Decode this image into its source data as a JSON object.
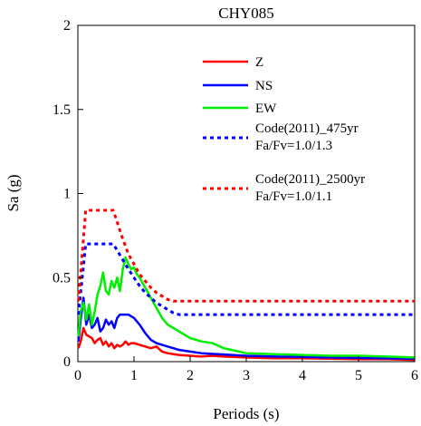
{
  "chart_data": {
    "type": "line",
    "title": "CHY085",
    "xlabel": "Periods (s)",
    "ylabel": "Sa (g)",
    "xlim": [
      0,
      6
    ],
    "ylim": [
      0,
      2
    ],
    "xticks": [
      0,
      1,
      2,
      3,
      4,
      5,
      6
    ],
    "xtick_labels": [
      "0",
      "1",
      "2",
      "3",
      "4",
      "5",
      "6"
    ],
    "yticks": [
      0,
      0.5,
      1,
      1.5,
      2
    ],
    "ytick_labels": [
      "0",
      "0.5",
      "1",
      "1.5",
      "2"
    ],
    "grid": false,
    "legend_position": "top-right",
    "series": [
      {
        "name": "Z",
        "color": "#ff0000",
        "dash": "solid",
        "x": [
          0.01,
          0.05,
          0.1,
          0.15,
          0.2,
          0.25,
          0.3,
          0.35,
          0.4,
          0.45,
          0.5,
          0.55,
          0.6,
          0.65,
          0.7,
          0.75,
          0.8,
          0.85,
          0.9,
          0.95,
          1.0,
          1.1,
          1.2,
          1.3,
          1.4,
          1.5,
          1.6,
          1.8,
          2.0,
          2.2,
          2.4,
          2.6,
          3.0,
          3.5,
          4.0,
          4.5,
          5.0,
          5.5,
          6.0
        ],
        "y": [
          0.08,
          0.12,
          0.2,
          0.16,
          0.15,
          0.14,
          0.11,
          0.13,
          0.14,
          0.1,
          0.12,
          0.09,
          0.11,
          0.08,
          0.1,
          0.09,
          0.1,
          0.12,
          0.1,
          0.11,
          0.11,
          0.1,
          0.09,
          0.08,
          0.09,
          0.06,
          0.05,
          0.04,
          0.035,
          0.03,
          0.035,
          0.03,
          0.025,
          0.02,
          0.02,
          0.018,
          0.015,
          0.015,
          0.01
        ]
      },
      {
        "name": "NS",
        "color": "#0000ff",
        "dash": "solid",
        "x": [
          0.01,
          0.05,
          0.1,
          0.15,
          0.2,
          0.25,
          0.3,
          0.35,
          0.4,
          0.45,
          0.5,
          0.55,
          0.6,
          0.65,
          0.7,
          0.75,
          0.8,
          0.85,
          0.9,
          0.95,
          1.0,
          1.1,
          1.2,
          1.3,
          1.4,
          1.5,
          1.6,
          1.8,
          2.0,
          2.2,
          2.5,
          3.0,
          3.5,
          4.0,
          4.5,
          5.0,
          5.5,
          6.0
        ],
        "y": [
          0.12,
          0.25,
          0.38,
          0.22,
          0.28,
          0.2,
          0.22,
          0.26,
          0.18,
          0.2,
          0.25,
          0.22,
          0.24,
          0.2,
          0.26,
          0.28,
          0.28,
          0.28,
          0.28,
          0.27,
          0.26,
          0.22,
          0.17,
          0.13,
          0.11,
          0.1,
          0.09,
          0.07,
          0.06,
          0.05,
          0.045,
          0.035,
          0.03,
          0.028,
          0.025,
          0.022,
          0.02,
          0.018
        ]
      },
      {
        "name": "EW",
        "color": "#00ee00",
        "dash": "solid",
        "x": [
          0.01,
          0.05,
          0.1,
          0.15,
          0.2,
          0.25,
          0.3,
          0.35,
          0.4,
          0.45,
          0.5,
          0.55,
          0.6,
          0.65,
          0.7,
          0.75,
          0.8,
          0.85,
          0.9,
          0.95,
          1.0,
          1.05,
          1.1,
          1.2,
          1.3,
          1.4,
          1.5,
          1.6,
          1.8,
          2.0,
          2.2,
          2.4,
          2.6,
          3.0,
          3.5,
          4.0,
          4.5,
          5.0,
          5.5,
          6.0
        ],
        "y": [
          0.15,
          0.3,
          0.35,
          0.25,
          0.34,
          0.22,
          0.3,
          0.4,
          0.45,
          0.53,
          0.42,
          0.4,
          0.48,
          0.44,
          0.5,
          0.42,
          0.55,
          0.62,
          0.58,
          0.55,
          0.56,
          0.52,
          0.5,
          0.44,
          0.38,
          0.32,
          0.26,
          0.22,
          0.18,
          0.14,
          0.12,
          0.11,
          0.08,
          0.05,
          0.045,
          0.04,
          0.035,
          0.035,
          0.03,
          0.025
        ]
      },
      {
        "name": "Code(2011)_475yr\nFa/Fv=1.0/1.3",
        "color": "#0000ff",
        "dash": "dotted",
        "x": [
          0.01,
          0.14,
          0.63,
          0.9,
          1.0,
          1.1,
          1.2,
          1.3,
          1.4,
          1.5,
          1.6,
          1.7,
          1.8,
          6.0
        ],
        "y": [
          0.28,
          0.7,
          0.7,
          0.55,
          0.5,
          0.45,
          0.41,
          0.38,
          0.35,
          0.33,
          0.31,
          0.29,
          0.28,
          0.28
        ]
      },
      {
        "name": "Code(2011)_2500yr\nFa/Fv=1.0/1.1",
        "color": "#ff0000",
        "dash": "dotted",
        "x": [
          0.01,
          0.14,
          0.63,
          0.8,
          0.9,
          1.0,
          1.1,
          1.2,
          1.3,
          1.4,
          1.5,
          1.6,
          1.7,
          6.0
        ],
        "y": [
          0.36,
          0.9,
          0.9,
          0.73,
          0.64,
          0.58,
          0.52,
          0.48,
          0.44,
          0.41,
          0.39,
          0.37,
          0.36,
          0.36
        ]
      }
    ],
    "legend": [
      {
        "lines": [
          "Z"
        ]
      },
      {
        "lines": [
          "NS"
        ]
      },
      {
        "lines": [
          "EW"
        ]
      },
      {
        "lines": [
          "Code(2011)_475yr",
          "Fa/Fv=1.0/1.3"
        ]
      },
      {
        "lines": [
          "Code(2011)_2500yr",
          "Fa/Fv=1.0/1.1"
        ]
      }
    ]
  }
}
